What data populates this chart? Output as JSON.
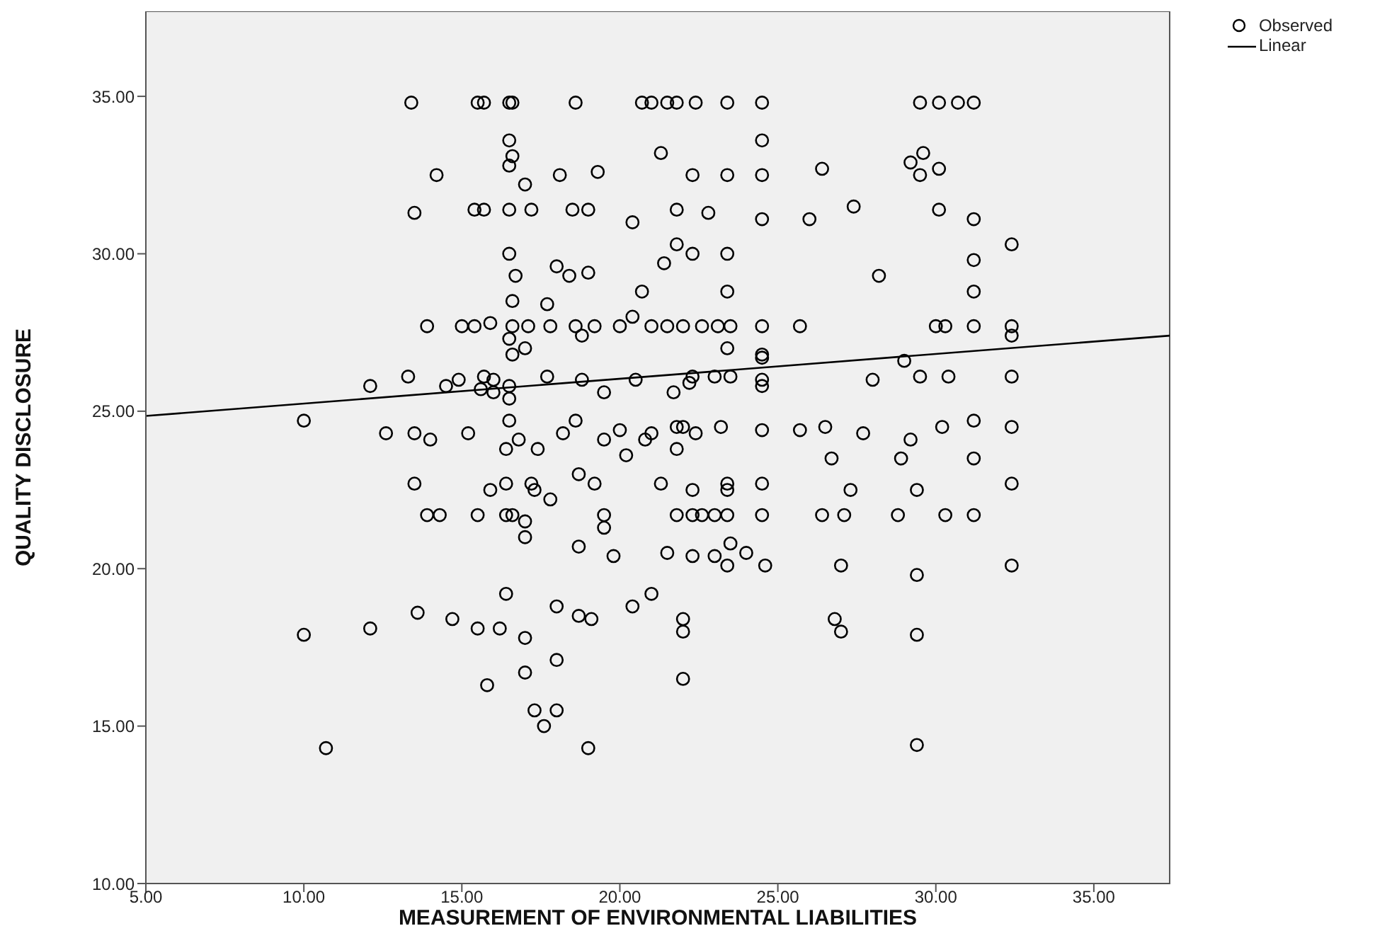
{
  "chart_data": {
    "type": "scatter",
    "xlabel": "MEASUREMENT OF ENVIRONMENTAL LIABILITIES",
    "ylabel": "QUALITY DISCLOSURE",
    "xlim": [
      5,
      37.4
    ],
    "ylim": [
      10,
      37.7
    ],
    "xticks": [
      {
        "value": 5,
        "label": "5.00"
      },
      {
        "value": 10,
        "label": "10.00"
      },
      {
        "value": 15,
        "label": "15.00"
      },
      {
        "value": 20,
        "label": "20.00"
      },
      {
        "value": 25,
        "label": "25.00"
      },
      {
        "value": 30,
        "label": "30.00"
      },
      {
        "value": 35,
        "label": "35.00"
      }
    ],
    "yticks": [
      {
        "value": 10,
        "label": "10.00"
      },
      {
        "value": 15,
        "label": "15.00"
      },
      {
        "value": 20,
        "label": "20.00"
      },
      {
        "value": 25,
        "label": "25.00"
      },
      {
        "value": 30,
        "label": "30.00"
      },
      {
        "value": 35,
        "label": "35.00"
      }
    ],
    "legend": "top right",
    "series": [
      {
        "name": "Observed",
        "marker": "circle",
        "color": "#000000",
        "x": [
          13.4,
          15.5,
          15.7,
          16.5,
          16.6,
          18.6,
          20.7,
          21.0,
          21.5,
          21.8,
          22.4,
          23.4,
          24.5,
          29.5,
          30.1,
          30.7,
          31.2,
          16.5,
          24.5,
          21.3,
          16.6,
          29.6,
          16.5,
          26.4,
          29.2,
          14.2,
          18.1,
          22.3,
          23.4,
          24.5,
          29.5,
          30.1,
          19.3,
          17.0,
          13.5,
          15.4,
          15.7,
          16.5,
          17.2,
          18.5,
          19.0,
          21.8,
          22.8,
          24.5,
          26.0,
          27.4,
          30.1,
          31.2,
          20.4,
          32.4,
          21.8,
          16.5,
          22.3,
          23.4,
          21.4,
          31.2,
          16.7,
          18.0,
          18.4,
          19.0,
          28.2,
          20.7,
          23.4,
          31.2,
          16.6,
          20.4,
          17.7,
          13.9,
          15.0,
          15.4,
          15.9,
          16.6,
          17.1,
          17.8,
          18.6,
          19.2,
          20.0,
          21.0,
          22.0,
          22.6,
          23.1,
          23.5,
          24.5,
          25.7,
          30.0,
          30.3,
          31.2,
          32.4,
          16.5,
          18.8,
          21.5,
          32.4,
          17.0,
          23.4,
          24.5,
          16.6,
          24.5,
          29.0,
          13.3,
          15.7,
          17.7,
          22.3,
          23.0,
          23.5,
          28.0,
          29.5,
          30.4,
          32.4,
          14.9,
          16.0,
          18.8,
          20.5,
          22.2,
          24.5,
          12.1,
          14.5,
          15.6,
          16.5,
          24.5,
          19.5,
          21.7,
          16.0,
          16.5,
          10.0,
          16.5,
          18.6,
          31.2,
          20.0,
          21.8,
          22.0,
          23.2,
          24.5,
          25.7,
          26.5,
          30.2,
          32.4,
          12.6,
          13.5,
          15.2,
          18.2,
          21.0,
          22.4,
          27.7,
          14.0,
          16.8,
          19.5,
          20.8,
          29.2,
          16.4,
          17.4,
          21.8,
          20.2,
          26.7,
          28.9,
          31.2,
          18.7,
          13.5,
          15.9,
          16.4,
          17.2,
          19.2,
          21.3,
          23.4,
          24.5,
          27.3,
          32.4,
          17.3,
          22.3,
          23.4,
          29.4,
          17.8,
          13.9,
          14.3,
          15.5,
          16.4,
          16.6,
          19.5,
          21.8,
          22.3,
          22.6,
          23.0,
          23.4,
          24.5,
          26.4,
          27.1,
          28.8,
          30.3,
          31.2,
          17.0,
          19.5,
          17.0,
          23.5,
          18.7,
          19.8,
          21.5,
          23.0,
          22.3,
          24.0,
          23.4,
          24.6,
          27.0,
          32.4,
          29.4,
          16.4,
          21.0,
          18.0,
          20.4,
          13.6,
          18.7,
          14.7,
          19.1,
          22.0,
          26.8,
          12.1,
          15.5,
          16.2,
          22.0,
          27.0,
          10.0,
          29.4,
          17.0,
          18.0,
          17.0,
          22.0,
          15.8,
          17.3,
          18.0,
          17.6,
          10.7,
          19.0,
          29.4
        ],
        "values": [
          34.8,
          34.8,
          34.8,
          34.8,
          34.8,
          34.8,
          34.8,
          34.8,
          34.8,
          34.8,
          34.8,
          34.8,
          34.8,
          34.8,
          34.8,
          34.8,
          34.8,
          33.6,
          33.6,
          33.2,
          33.1,
          33.2,
          32.8,
          32.7,
          32.9,
          32.5,
          32.5,
          32.5,
          32.5,
          32.5,
          32.5,
          32.7,
          32.6,
          32.2,
          31.3,
          31.4,
          31.4,
          31.4,
          31.4,
          31.4,
          31.4,
          31.4,
          31.3,
          31.1,
          31.1,
          31.5,
          31.4,
          31.1,
          31.0,
          30.3,
          30.3,
          30.0,
          30.0,
          30.0,
          29.7,
          29.8,
          29.3,
          29.6,
          29.3,
          29.4,
          29.3,
          28.8,
          28.8,
          28.8,
          28.5,
          28.0,
          28.4,
          27.7,
          27.7,
          27.7,
          27.8,
          27.7,
          27.7,
          27.7,
          27.7,
          27.7,
          27.7,
          27.7,
          27.7,
          27.7,
          27.7,
          27.7,
          27.7,
          27.7,
          27.7,
          27.7,
          27.7,
          27.7,
          27.3,
          27.4,
          27.7,
          27.4,
          27.0,
          27.0,
          26.8,
          26.8,
          26.7,
          26.6,
          26.1,
          26.1,
          26.1,
          26.1,
          26.1,
          26.1,
          26.0,
          26.1,
          26.1,
          26.1,
          26.0,
          26.0,
          26.0,
          26.0,
          25.9,
          26.0,
          25.8,
          25.8,
          25.7,
          25.8,
          25.8,
          25.6,
          25.6,
          25.6,
          25.4,
          24.7,
          24.7,
          24.7,
          24.7,
          24.4,
          24.5,
          24.5,
          24.5,
          24.4,
          24.4,
          24.5,
          24.5,
          24.5,
          24.3,
          24.3,
          24.3,
          24.3,
          24.3,
          24.3,
          24.3,
          24.1,
          24.1,
          24.1,
          24.1,
          24.1,
          23.8,
          23.8,
          23.8,
          23.6,
          23.5,
          23.5,
          23.5,
          23.0,
          22.7,
          22.5,
          22.7,
          22.7,
          22.7,
          22.7,
          22.7,
          22.7,
          22.5,
          22.7,
          22.5,
          22.5,
          22.5,
          22.5,
          22.2,
          21.7,
          21.7,
          21.7,
          21.7,
          21.7,
          21.7,
          21.7,
          21.7,
          21.7,
          21.7,
          21.7,
          21.7,
          21.7,
          21.7,
          21.7,
          21.7,
          21.7,
          21.5,
          21.3,
          21.0,
          20.8,
          20.7,
          20.4,
          20.5,
          20.4,
          20.4,
          20.5,
          20.1,
          20.1,
          20.1,
          20.1,
          19.8,
          19.2,
          19.2,
          18.8,
          18.8,
          18.6,
          18.5,
          18.4,
          18.4,
          18.4,
          18.4,
          18.1,
          18.1,
          18.1,
          18.0,
          18.0,
          17.9,
          17.9,
          17.8,
          17.1,
          16.7,
          16.5,
          16.3,
          15.5,
          15.5,
          15.0,
          14.3,
          14.3,
          14.4
        ]
      },
      {
        "name": "Linear",
        "type": "line",
        "marker": "none",
        "line_style": "solid",
        "color": "#000000",
        "x": [
          5,
          37.4
        ],
        "values": [
          24.85,
          27.4
        ]
      }
    ]
  }
}
